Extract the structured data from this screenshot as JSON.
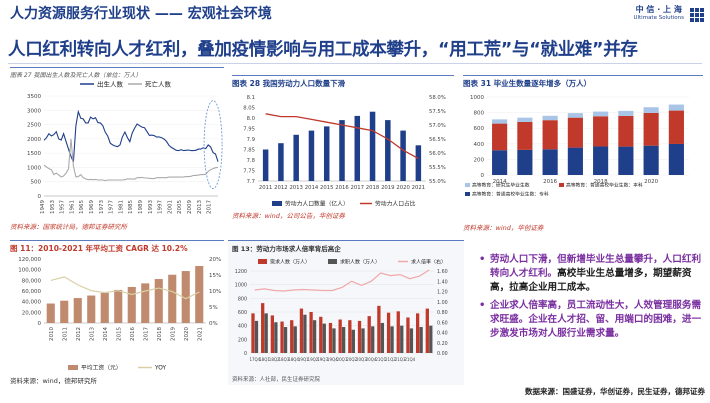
{
  "header": {
    "title": "人力资源服务行业现状 —— 宏观社会环境",
    "subtitle": "人口红利转向人才红利，叠加疫情影响与用工成本攀升，“用工荒”与“就业难”并存",
    "logo_cn": "中 信 · 上 海",
    "logo_en": "Ultimate Solutions"
  },
  "panels": {
    "p1": {
      "title": "图表 27  我国出生人数及死亡人数（单位：万人）",
      "source": "资料来源：国家统计局，德邦证券研究所"
    },
    "p2": {
      "title": "图表 28  我国劳动力人口数量下滑",
      "source": "资料来源：wind，公司公告，华创证券"
    },
    "p3": {
      "title": "图表 31  毕业生数量逐年增多（万人）",
      "source": "资料来源：wind，华创证券"
    },
    "p4": {
      "title": "图 11：2010-2021 年平均工资 CAGR 达 10.2%",
      "source": "资料来源：wind，德邦研究所"
    },
    "p5": {
      "title": "图 13：劳动力市场求人倍率背后高企",
      "source": "资料来源：人社部，民生证券研究院"
    }
  },
  "bullets": [
    {
      "highlight": "劳动人口下滑，但新增毕业生总量攀升，人口红利转向人才红利。",
      "normal": "高校毕业生总量增多，期望薪资高，拉高企业用工成本。"
    },
    {
      "highlight": "企业求人倍率高，员工流动性大，人效管理服务需求旺盛。企业在人才招、留、用端口的困难，进一步激发市场对人服行业需求量。",
      "normal": ""
    }
  ],
  "footer_sources": "数据来源：国盛证券，华创证券，民生证券，德邦证券",
  "colors": {
    "primary": "#1f3f8a",
    "accent": "#7a2fa0",
    "bar_red": "#c0392b",
    "bar_navy": "#1f3f8a",
    "line_gray": "#aaaaaa"
  },
  "chart_data": [
    {
      "type": "line",
      "title": "我国出生人数及死亡人数（单位：万人）",
      "x_ticks": [
        "1949",
        "1953",
        "1957",
        "1961",
        "1965",
        "1969",
        "1973",
        "1977",
        "1981",
        "1985",
        "1989",
        "1993",
        "1997",
        "2001",
        "2005",
        "2009",
        "2013",
        "2017"
      ],
      "ylim": [
        0,
        3500
      ],
      "y_ticks": [
        0,
        500,
        1000,
        1500,
        2000,
        2500,
        3000,
        3500
      ],
      "series": [
        {
          "name": "出生人数",
          "color": "#1f3f8a",
          "x": [
            1949,
            1950,
            1951,
            1952,
            1953,
            1954,
            1955,
            1956,
            1957,
            1958,
            1959,
            1960,
            1961,
            1962,
            1963,
            1964,
            1965,
            1966,
            1967,
            1968,
            1969,
            1970,
            1971,
            1972,
            1973,
            1974,
            1975,
            1976,
            1977,
            1978,
            1979,
            1980,
            1981,
            1982,
            1983,
            1984,
            1985,
            1986,
            1987,
            1988,
            1989,
            1990,
            1991,
            1992,
            1993,
            1994,
            1995,
            1996,
            1997,
            1998,
            1999,
            2000,
            2001,
            2002,
            2003,
            2004,
            2005,
            2006,
            2007,
            2008,
            2009,
            2010,
            2011,
            2012,
            2013,
            2014,
            2015,
            2016,
            2017,
            2018,
            2019,
            2020
          ],
          "values": [
            1950,
            2040,
            2180,
            2100,
            2150,
            2250,
            2000,
            1960,
            2180,
            1900,
            1640,
            1390,
            1190,
            2460,
            2950,
            2720,
            2700,
            2560,
            2560,
            2760,
            2700,
            2740,
            2570,
            2560,
            2460,
            2230,
            2100,
            1850,
            1790,
            1750,
            1730,
            1790,
            2070,
            2240,
            2050,
            1900,
            2200,
            2380,
            2520,
            2460,
            2410,
            2390,
            2260,
            2120,
            2130,
            2110,
            2060,
            2070,
            2040,
            1990,
            1910,
            1770,
            1700,
            1650,
            1600,
            1590,
            1620,
            1590,
            1600,
            1610,
            1590,
            1590,
            1600,
            1640,
            1640,
            1690,
            1660,
            1790,
            1720,
            1520,
            1470,
            1200
          ]
        },
        {
          "name": "死亡人数",
          "color": "#aaaaaa",
          "x": [
            1949,
            1950,
            1951,
            1952,
            1953,
            1954,
            1955,
            1956,
            1957,
            1958,
            1959,
            1960,
            1961,
            1962,
            1963,
            1964,
            1965,
            1966,
            1967,
            1968,
            1969,
            1970,
            1971,
            1972,
            1973,
            1974,
            1975,
            1976,
            1977,
            1978,
            1979,
            1980,
            1981,
            1982,
            1983,
            1984,
            1985,
            1986,
            1987,
            1988,
            1989,
            1990,
            1991,
            1992,
            1993,
            1994,
            1995,
            1996,
            1997,
            1998,
            1999,
            2000,
            2001,
            2002,
            2003,
            2004,
            2005,
            2006,
            2007,
            2008,
            2009,
            2010,
            2011,
            2012,
            2013,
            2014,
            2015,
            2016,
            2017,
            2018,
            2019,
            2020
          ],
          "values": [
            1080,
            1010,
            960,
            920,
            750,
            800,
            740,
            670,
            700,
            800,
            950,
            2000,
            1050,
            670,
            680,
            750,
            640,
            600,
            570,
            580,
            570,
            580,
            560,
            560,
            560,
            540,
            560,
            560,
            560,
            560,
            560,
            560,
            560,
            570,
            600,
            600,
            590,
            590,
            640,
            640,
            650,
            630,
            630,
            620,
            610,
            610,
            640,
            640,
            640,
            640,
            640,
            660,
            660,
            660,
            660,
            660,
            660,
            670,
            680,
            680,
            690,
            720,
            720,
            730,
            750,
            750,
            760,
            860,
            920,
            960,
            990,
            1000
          ]
        }
      ]
    },
    {
      "type": "bar",
      "title": "我国劳动力人口数量下滑",
      "categories": [
        "2011",
        "2012",
        "2013",
        "2014",
        "2015",
        "2016",
        "2017",
        "2018",
        "2019",
        "2020",
        "2021"
      ],
      "ylim": [
        7.7,
        8.1
      ],
      "y_ticks": [
        7.7,
        7.75,
        7.8,
        7.85,
        7.9,
        7.95,
        8.0,
        8.05,
        8.1
      ],
      "y2lim": [
        55.0,
        58.0
      ],
      "y2_ticks": [
        "55.0%",
        "55.5%",
        "56.0%",
        "56.5%",
        "57.0%",
        "57.5%",
        "58.0%"
      ],
      "series": [
        {
          "name": "劳动力人口数量（亿人）",
          "color": "#1f3f8a",
          "values": [
            7.85,
            7.88,
            7.92,
            7.94,
            7.96,
            7.99,
            8.01,
            8.03,
            7.99,
            7.94,
            7.87
          ]
        },
        {
          "name": "劳动力人口占比",
          "color": "#c0392b",
          "type": "line",
          "values": [
            57.4,
            57.3,
            57.3,
            57.2,
            57.1,
            57.0,
            56.9,
            56.8,
            56.5,
            56.1,
            55.8
          ]
        }
      ]
    },
    {
      "type": "bar",
      "stacked": true,
      "title": "毕业生数量逐年增多（万人）",
      "categories": [
        "2014",
        "2015",
        "2016",
        "2017",
        "2018",
        "2019",
        "2020",
        "2021"
      ],
      "x_tick_labels": [
        "2014",
        "",
        "2016",
        "",
        "2018",
        "",
        "2020",
        ""
      ],
      "ylim": [
        0,
        1000
      ],
      "y_ticks": [
        0,
        200,
        400,
        600,
        800,
        1000
      ],
      "series": [
        {
          "name": "高等教育：普通高校毕业生数：专科",
          "color": "#1f3f8a",
          "values": [
            318,
            322,
            329,
            351,
            366,
            364,
            376,
            398
          ]
        },
        {
          "name": "高等教育：普通高校毕业生数：本科",
          "color": "#c0392b",
          "values": [
            341,
            358,
            374,
            384,
            387,
            394,
            420,
            428
          ]
        },
        {
          "name": "高等教育：研究生毕业生数",
          "color": "#a8c4e6",
          "values": [
            54,
            55,
            56,
            58,
            60,
            64,
            73,
            77
          ]
        }
      ]
    },
    {
      "type": "bar",
      "title": "2010-2021 年平均工资 CAGR 达 10.2%",
      "categories": [
        "2010",
        "2011",
        "2012",
        "2013",
        "2014",
        "2015",
        "2016",
        "2017",
        "2018",
        "2019",
        "2020",
        "2021"
      ],
      "ylim": [
        0,
        120000
      ],
      "y_ticks": [
        "0",
        "20,000",
        "40,000",
        "60,000",
        "80,000",
        "100,000",
        "120,000"
      ],
      "y2lim": [
        0,
        20
      ],
      "y2_ticks": [
        "0%",
        "5%",
        "10%",
        "15%",
        "20%"
      ],
      "series": [
        {
          "name": "平均工资（元）",
          "color": "#c08a6f",
          "values": [
            36539,
            41799,
            46769,
            51483,
            56360,
            62029,
            67569,
            74318,
            82413,
            90501,
            97379,
            106837
          ]
        },
        {
          "name": "YOY",
          "color": "#d9cfa5",
          "type": "line",
          "values": [
            13.3,
            14.4,
            11.9,
            10.1,
            9.5,
            10.1,
            8.9,
            10.0,
            10.9,
            9.8,
            7.6,
            9.7
          ]
        }
      ]
    },
    {
      "type": "bar",
      "title": "劳动力市场求人倍率背后高企",
      "categories": [
        "17Q4",
        "18Q1",
        "18Q2",
        "18Q3",
        "18Q4",
        "19Q1",
        "19Q2",
        "19Q3",
        "19Q4",
        "20Q1",
        "20Q2",
        "20Q3",
        "20Q4",
        "21Q1",
        "21Q2",
        "21Q3",
        "21Q4",
        "22Q1",
        "22Q2"
      ],
      "x_tick_labels": [
        "17Q4",
        "18Q1",
        "18Q2",
        "18Q3",
        "18Q4",
        "19Q1",
        "19Q2",
        "19Q3",
        "19Q4",
        "20Q1",
        "20Q2",
        "20Q3",
        "20Q4",
        "21Q1",
        "21Q2",
        "21Q3",
        "21Q4"
      ],
      "ylim": [
        0,
        1200
      ],
      "y_ticks": [
        0,
        200,
        400,
        600,
        800,
        1000,
        1200
      ],
      "y2lim": [
        0,
        1.6
      ],
      "y2_ticks": [
        "0.00",
        "0.20",
        "0.40",
        "0.60",
        "0.80",
        "1.00",
        "1.20",
        "1.40",
        "1.60"
      ],
      "series": [
        {
          "name": "需求人数（万人）",
          "color": "#c0392b",
          "values": [
            580,
            730,
            550,
            460,
            480,
            650,
            600,
            530,
            440,
            490,
            480,
            470,
            540,
            690,
            590,
            610,
            520,
            580,
            650
          ]
        },
        {
          "name": "求职人数（万人）",
          "color": "#555555",
          "values": [
            470,
            580,
            450,
            380,
            390,
            560,
            480,
            430,
            360,
            380,
            340,
            360,
            390,
            440,
            390,
            400,
            360,
            380,
            400
          ]
        },
        {
          "name": "求人倍率（右）",
          "color": "#f0a8a8",
          "type": "line",
          "values": [
            1.23,
            1.25,
            1.22,
            1.21,
            1.23,
            1.24,
            1.23,
            1.22,
            1.22,
            1.28,
            1.4,
            1.32,
            1.4,
            1.56,
            1.51,
            1.53,
            1.45,
            1.5,
            1.62
          ]
        }
      ]
    }
  ]
}
